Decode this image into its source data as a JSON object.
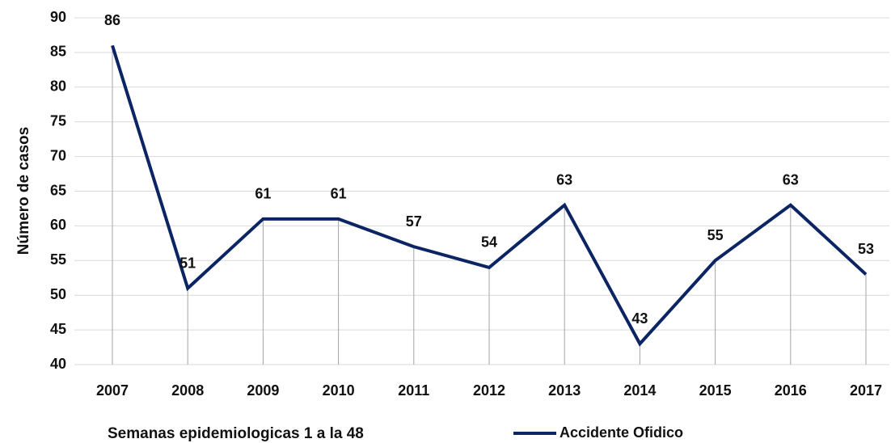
{
  "chart_data": {
    "type": "line",
    "y_label": "Número de casos",
    "x_label": "Semanas epidemiologicas 1 a la 48",
    "categories": [
      "2007",
      "2008",
      "2009",
      "2010",
      "2011",
      "2012",
      "2013",
      "2014",
      "2015",
      "2016",
      "2017"
    ],
    "series": [
      {
        "name": "Accidente Ofidico",
        "color": "#0b2463",
        "values": [
          86,
          51,
          61,
          61,
          57,
          54,
          63,
          43,
          55,
          63,
          53
        ]
      }
    ],
    "ylim": [
      40,
      90
    ],
    "yticks": [
      40,
      45,
      50,
      55,
      60,
      65,
      70,
      75,
      80,
      85,
      90
    ],
    "grid": true,
    "drop_lines": true,
    "legend": "bottom"
  }
}
